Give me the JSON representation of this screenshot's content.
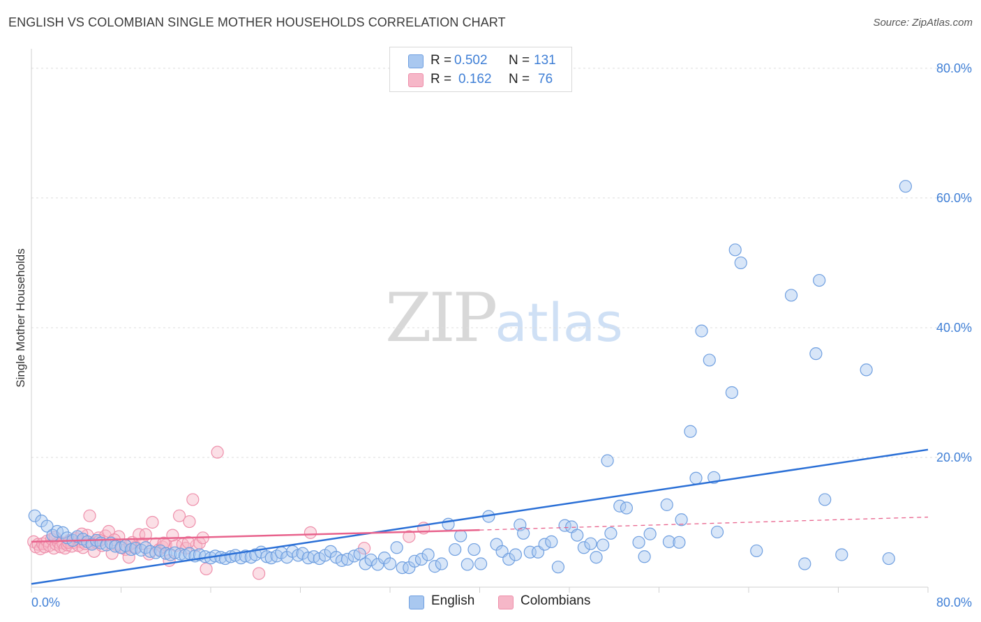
{
  "header": {
    "title": "ENGLISH VS COLOMBIAN SINGLE MOTHER HOUSEHOLDS CORRELATION CHART",
    "source": "Source: ZipAtlas.com"
  },
  "watermark": {
    "zip": "ZIP",
    "atlas": "atlas"
  },
  "legend": {
    "rows": [
      {
        "r_label": "R =",
        "r_value": "0.502",
        "n_label": "N =",
        "n_value": "131",
        "color": "#a9c8f0"
      },
      {
        "r_label": "R =",
        "r_value": "0.162",
        "n_label": "N =",
        "n_value": "76",
        "color": "#f6b7c8"
      }
    ]
  },
  "bottom_legend": [
    {
      "label": "English",
      "color": "#a9c8f0"
    },
    {
      "label": "Colombians",
      "color": "#f6b7c8"
    }
  ],
  "chart_data": {
    "type": "scatter",
    "title": "ENGLISH VS COLOMBIAN SINGLE MOTHER HOUSEHOLDS CORRELATION CHART",
    "xlabel": "",
    "ylabel": "Single Mother Households",
    "xlim": [
      0,
      80
    ],
    "ylim": [
      0,
      83
    ],
    "x_tick_labels": [
      "0.0%",
      "80.0%"
    ],
    "y_ticks": [
      20,
      40,
      60,
      80
    ],
    "y_tick_labels": [
      "20.0%",
      "40.0%",
      "60.0%",
      "80.0%"
    ],
    "grid": true,
    "legend_position": "top-center",
    "series": [
      {
        "name": "English",
        "color": "#6f9fe0",
        "fill": "#a9c8f0",
        "trend": {
          "x": [
            0,
            80
          ],
          "y": [
            0.5,
            21.2
          ],
          "color": "#2a6fd6",
          "style": "solid"
        },
        "points": [
          [
            0.3,
            11
          ],
          [
            0.9,
            10.2
          ],
          [
            1.4,
            9.4
          ],
          [
            1.9,
            8
          ],
          [
            2.3,
            8.6
          ],
          [
            2.8,
            8.4
          ],
          [
            3.2,
            7.6
          ],
          [
            3.7,
            7.2
          ],
          [
            4.1,
            7.8
          ],
          [
            4.6,
            7.4
          ],
          [
            5.0,
            7.0
          ],
          [
            5.4,
            6.6
          ],
          [
            5.8,
            7.2
          ],
          [
            6.2,
            6.8
          ],
          [
            6.7,
            6.5
          ],
          [
            7.1,
            6.8
          ],
          [
            7.5,
            6.3
          ],
          [
            8.0,
            6.1
          ],
          [
            8.4,
            6.4
          ],
          [
            8.9,
            5.8
          ],
          [
            9.3,
            6.0
          ],
          [
            9.8,
            5.7
          ],
          [
            10.2,
            6.1
          ],
          [
            10.6,
            5.5
          ],
          [
            11.1,
            5.3
          ],
          [
            11.5,
            5.6
          ],
          [
            12.0,
            5.2
          ],
          [
            12.4,
            5.0
          ],
          [
            12.8,
            5.3
          ],
          [
            13.3,
            5.1
          ],
          [
            13.7,
            4.9
          ],
          [
            14.1,
            5.2
          ],
          [
            14.6,
            4.8
          ],
          [
            15.0,
            5.0
          ],
          [
            15.5,
            4.7
          ],
          [
            16.0,
            4.5
          ],
          [
            16.4,
            4.8
          ],
          [
            16.9,
            4.6
          ],
          [
            17.3,
            4.4
          ],
          [
            17.8,
            4.7
          ],
          [
            18.2,
            4.9
          ],
          [
            18.7,
            4.5
          ],
          [
            19.1,
            4.8
          ],
          [
            19.6,
            4.6
          ],
          [
            20.0,
            5.0
          ],
          [
            20.5,
            5.4
          ],
          [
            21.0,
            4.7
          ],
          [
            21.4,
            4.5
          ],
          [
            21.9,
            4.8
          ],
          [
            22.3,
            5.3
          ],
          [
            22.8,
            4.6
          ],
          [
            23.3,
            5.5
          ],
          [
            23.8,
            4.9
          ],
          [
            24.2,
            5.2
          ],
          [
            24.7,
            4.5
          ],
          [
            25.2,
            4.7
          ],
          [
            25.7,
            4.4
          ],
          [
            26.2,
            4.9
          ],
          [
            26.7,
            5.5
          ],
          [
            27.2,
            4.6
          ],
          [
            27.7,
            4.1
          ],
          [
            28.2,
            4.3
          ],
          [
            28.8,
            4.8
          ],
          [
            29.3,
            5.1
          ],
          [
            29.8,
            3.6
          ],
          [
            30.3,
            4.2
          ],
          [
            30.9,
            3.5
          ],
          [
            31.5,
            4.5
          ],
          [
            32.0,
            3.6
          ],
          [
            32.6,
            6.1
          ],
          [
            33.1,
            3.0
          ],
          [
            33.7,
            3.0
          ],
          [
            34.2,
            4.0
          ],
          [
            34.8,
            4.3
          ],
          [
            35.4,
            5.0
          ],
          [
            36.0,
            3.2
          ],
          [
            36.6,
            3.6
          ],
          [
            37.2,
            9.7
          ],
          [
            37.8,
            5.8
          ],
          [
            38.3,
            7.9
          ],
          [
            38.9,
            3.5
          ],
          [
            39.5,
            5.8
          ],
          [
            40.1,
            3.6
          ],
          [
            40.8,
            10.9
          ],
          [
            41.5,
            6.6
          ],
          [
            42.0,
            5.5
          ],
          [
            42.6,
            4.3
          ],
          [
            43.2,
            5.0
          ],
          [
            43.6,
            9.6
          ],
          [
            43.9,
            8.3
          ],
          [
            44.5,
            5.4
          ],
          [
            45.2,
            5.4
          ],
          [
            45.8,
            6.6
          ],
          [
            46.4,
            7.0
          ],
          [
            47.0,
            3.1
          ],
          [
            47.6,
            9.5
          ],
          [
            48.2,
            9.3
          ],
          [
            48.7,
            8.0
          ],
          [
            49.3,
            6.1
          ],
          [
            49.9,
            6.7
          ],
          [
            50.4,
            4.6
          ],
          [
            51.0,
            6.5
          ],
          [
            51.4,
            19.5
          ],
          [
            51.7,
            8.3
          ],
          [
            52.5,
            12.5
          ],
          [
            53.1,
            12.2
          ],
          [
            54.2,
            6.9
          ],
          [
            54.7,
            4.7
          ],
          [
            55.2,
            8.2
          ],
          [
            56.7,
            12.7
          ],
          [
            56.9,
            7.0
          ],
          [
            57.8,
            6.9
          ],
          [
            58.0,
            10.4
          ],
          [
            58.8,
            24.0
          ],
          [
            59.3,
            16.8
          ],
          [
            59.8,
            39.5
          ],
          [
            60.5,
            35.0
          ],
          [
            60.9,
            16.9
          ],
          [
            61.2,
            8.5
          ],
          [
            62.5,
            30.0
          ],
          [
            62.8,
            52.0
          ],
          [
            63.3,
            50.0
          ],
          [
            64.7,
            5.6
          ],
          [
            67.8,
            45.0
          ],
          [
            69.0,
            3.6
          ],
          [
            70.0,
            36.0
          ],
          [
            70.3,
            47.3
          ],
          [
            70.8,
            13.5
          ],
          [
            72.3,
            5.0
          ],
          [
            74.5,
            33.5
          ],
          [
            76.5,
            4.4
          ],
          [
            78.0,
            61.8
          ]
        ]
      },
      {
        "name": "Colombians",
        "color": "#ee8fab",
        "fill": "#f6b7c8",
        "trend": {
          "x": [
            0,
            40
          ],
          "y": [
            7.0,
            8.8
          ],
          "color": "#e8628c",
          "style": "solid",
          "extension": {
            "x": [
              40,
              80
            ],
            "y": [
              8.8,
              10.8
            ],
            "style": "dashed"
          }
        },
        "points": [
          [
            0.2,
            7.0
          ],
          [
            0.4,
            6.2
          ],
          [
            0.6,
            6.6
          ],
          [
            0.8,
            5.9
          ],
          [
            1.0,
            6.7
          ],
          [
            1.2,
            6.2
          ],
          [
            1.4,
            7.1
          ],
          [
            1.6,
            6.4
          ],
          [
            1.8,
            7.4
          ],
          [
            2.0,
            6.0
          ],
          [
            2.2,
            6.6
          ],
          [
            2.4,
            6.9
          ],
          [
            2.6,
            6.2
          ],
          [
            2.8,
            6.8
          ],
          [
            3.0,
            6.0
          ],
          [
            3.2,
            6.5
          ],
          [
            3.4,
            7.2
          ],
          [
            3.6,
            6.3
          ],
          [
            3.8,
            6.9
          ],
          [
            4.0,
            7.5
          ],
          [
            4.2,
            6.4
          ],
          [
            4.4,
            7.0
          ],
          [
            4.6,
            6.1
          ],
          [
            4.8,
            6.7
          ],
          [
            5.0,
            8.0
          ],
          [
            5.2,
            11.0
          ],
          [
            5.4,
            6.8
          ],
          [
            5.6,
            5.5
          ],
          [
            5.8,
            6.9
          ],
          [
            6.0,
            7.6
          ],
          [
            6.3,
            6.4
          ],
          [
            6.6,
            7.9
          ],
          [
            6.9,
            8.6
          ],
          [
            7.2,
            5.2
          ],
          [
            7.5,
            6.6
          ],
          [
            7.8,
            7.8
          ],
          [
            8.1,
            6.1
          ],
          [
            8.4,
            5.8
          ],
          [
            8.7,
            4.6
          ],
          [
            9.0,
            6.9
          ],
          [
            9.3,
            6.2
          ],
          [
            9.6,
            8.1
          ],
          [
            9.9,
            6.7
          ],
          [
            10.2,
            8.1
          ],
          [
            10.5,
            5.1
          ],
          [
            10.8,
            10.0
          ],
          [
            11.1,
            6.7
          ],
          [
            11.4,
            5.8
          ],
          [
            11.7,
            6.2
          ],
          [
            12.0,
            6.5
          ],
          [
            12.3,
            4.1
          ],
          [
            12.6,
            8.0
          ],
          [
            12.9,
            6.4
          ],
          [
            13.2,
            11.0
          ],
          [
            13.5,
            6.6
          ],
          [
            13.8,
            6.0
          ],
          [
            14.1,
            10.1
          ],
          [
            14.4,
            13.5
          ],
          [
            14.7,
            6.4
          ],
          [
            15.0,
            6.8
          ],
          [
            15.3,
            7.6
          ],
          [
            15.6,
            2.8
          ],
          [
            16.6,
            20.8
          ],
          [
            20.3,
            2.1
          ],
          [
            24.9,
            8.4
          ],
          [
            29.7,
            6.0
          ],
          [
            33.7,
            7.8
          ],
          [
            35.0,
            9.1
          ],
          [
            2.1,
            7.7
          ],
          [
            3.3,
            6.9
          ],
          [
            4.5,
            8.2
          ],
          [
            6.1,
            7.2
          ],
          [
            7.4,
            7.3
          ],
          [
            8.8,
            6.6
          ],
          [
            11.8,
            6.8
          ],
          [
            14.0,
            6.9
          ]
        ]
      }
    ]
  }
}
